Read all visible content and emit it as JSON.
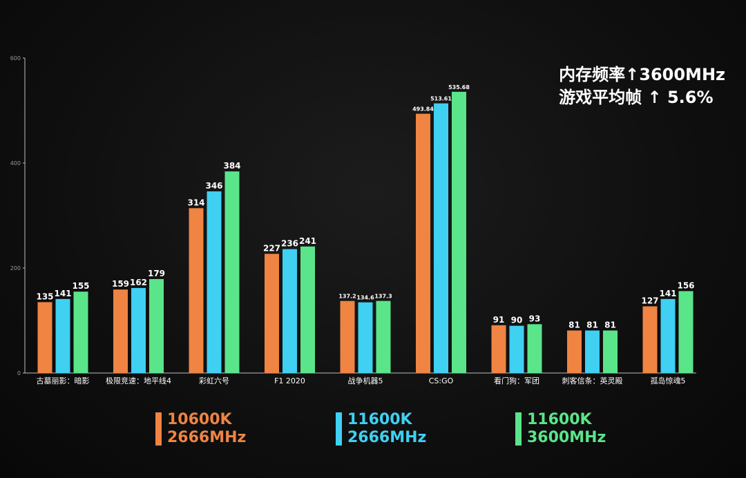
{
  "colors": {
    "s1": "#ef8443",
    "s2": "#3fd0f2",
    "s3": "#5ae58a"
  },
  "annotation": {
    "line1": "内存频率↑3600MHz",
    "line2": "游戏平均帧 ↑ 5.6%"
  },
  "legend": [
    {
      "line1": "10600K",
      "line2": "2666MHz"
    },
    {
      "line1": "11600K",
      "line2": "2666MHz"
    },
    {
      "line1": "11600K",
      "line2": "3600MHz"
    }
  ],
  "chart_data": {
    "type": "bar",
    "categories": [
      "古墓丽影：暗影",
      "极限竞速：地平线4",
      "彩虹六号",
      "F1 2020",
      "战争机器5",
      "CS:GO",
      "看门狗：军团",
      "刺客信条：英灵殿",
      "孤岛惊魂5"
    ],
    "series": [
      {
        "name": "10600K 2666MHz",
        "values": [
          135,
          159,
          314,
          227,
          137.2,
          493.84,
          91,
          81,
          127
        ],
        "labels": [
          "135",
          "159",
          "314",
          "227",
          "137.2",
          "493.84",
          "91",
          "81",
          "127"
        ]
      },
      {
        "name": "11600K 2666MHz",
        "values": [
          141,
          162,
          346,
          236,
          134.6,
          513.61,
          90,
          81,
          141
        ],
        "labels": [
          "141",
          "162",
          "346",
          "236",
          "134.6",
          "513.61",
          "90",
          "81",
          "141"
        ]
      },
      {
        "name": "11600K 3600MHz",
        "values": [
          155,
          179,
          384,
          241,
          137.3,
          535.68,
          93,
          81,
          156
        ],
        "labels": [
          "155",
          "179",
          "384",
          "241",
          "137.3",
          "535.68",
          "93",
          "81",
          "156"
        ]
      }
    ],
    "yticks": [
      0,
      200,
      400,
      600
    ],
    "ylim": [
      0,
      600
    ],
    "grid": false,
    "legend_position": "bottom"
  }
}
